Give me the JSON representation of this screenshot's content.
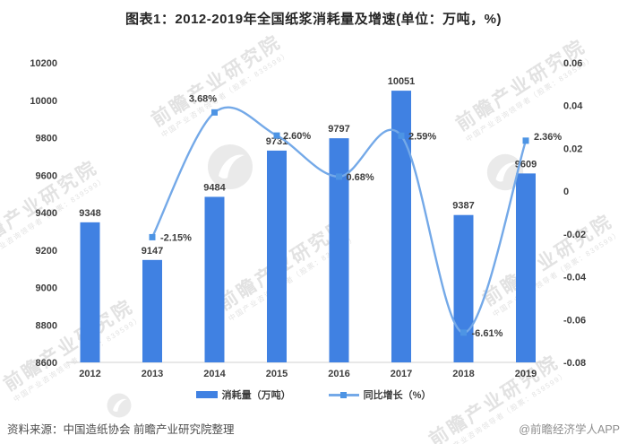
{
  "title": "图表1：2012-2019年全国纸浆消耗量及增速(单位：万吨，%)",
  "chart_data": {
    "type": "bar+line combo",
    "title": "图表1：2012-2019年全国纸浆消耗量及增速(单位：万吨，%)",
    "categories": [
      "2012",
      "2013",
      "2014",
      "2015",
      "2016",
      "2017",
      "2018",
      "2019"
    ],
    "series": [
      {
        "name": "消耗量（万吨）",
        "type": "bar",
        "axis": "left",
        "color": "#4081E2",
        "values": [
          9348,
          9147,
          9484,
          9731,
          9797,
          10051,
          9387,
          9609
        ]
      },
      {
        "name": "同比增长（%）",
        "type": "line",
        "axis": "right",
        "color": "#74A9E8",
        "marker_color": "#4D94E4",
        "values": [
          null,
          -0.0215,
          0.0368,
          0.026,
          0.0068,
          0.0259,
          -0.0661,
          0.0236
        ],
        "point_labels": [
          null,
          "-2.15%",
          "3.68%",
          "2.60%",
          "0.68%",
          "2.59%",
          "-6.61%",
          "2.36%"
        ]
      }
    ],
    "left_axis": {
      "min": 8600,
      "max": 10200,
      "ticks_top_to_bottom": [
        "10200",
        "10000",
        "9800",
        "9600",
        "9400",
        "9200",
        "9000",
        "8800",
        "8600"
      ]
    },
    "right_axis": {
      "min": -0.08,
      "max": 0.06,
      "ticks_top_to_bottom": [
        "0.06",
        "0.04",
        "0.02",
        "0",
        "-0.02",
        "-0.04",
        "-0.06",
        "-0.08"
      ]
    },
    "grid": false,
    "legend_position": "bottom-center",
    "layout": {
      "pct_label_offsets": [
        null,
        [
          9,
          4
        ],
        [
          -13,
          -12
        ],
        [
          7,
          4
        ],
        [
          8,
          4
        ],
        [
          8,
          4
        ],
        [
          9,
          4
        ],
        [
          9,
          -1
        ]
      ],
      "pct_label_anchors": [
        null,
        "start",
        "middle",
        "start",
        "start",
        "start",
        "start",
        "start"
      ]
    }
  },
  "legend": {
    "items": [
      {
        "label": "消耗量（万吨）",
        "swatch": "bar"
      },
      {
        "label": "同比增长（%）",
        "swatch": "line-marker"
      }
    ]
  },
  "footer": {
    "source": "资料来源：中国造纸协会 前瞻产业研究院整理",
    "credit": "@前瞻经济学人APP"
  },
  "watermark": {
    "text": "前瞻产业研究院",
    "subtext": "中国产业咨询领导者（股票：839599）"
  }
}
